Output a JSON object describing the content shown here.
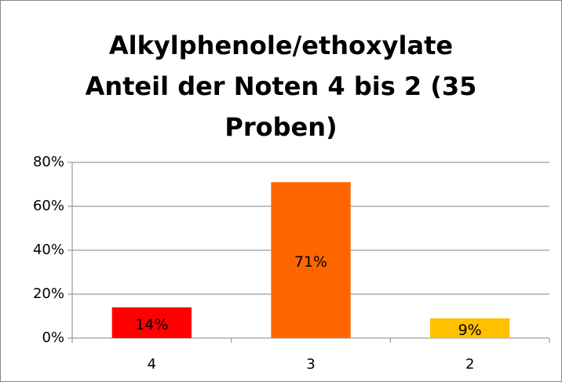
{
  "chart_data": {
    "type": "bar",
    "title": "Alkylphenole/ethoxylate Anteil der Noten 4 bis 2 (35 Proben)",
    "categories": [
      "4",
      "3",
      "2"
    ],
    "values": [
      14,
      71,
      9
    ],
    "value_labels": [
      "14%",
      "71%",
      "9%"
    ],
    "colors": [
      "#ff0000",
      "#ff6600",
      "#ffc000"
    ],
    "ylim": [
      0,
      80
    ],
    "yticks": [
      {
        "value": 0,
        "label": "0%"
      },
      {
        "value": 20,
        "label": "20%"
      },
      {
        "value": 40,
        "label": "40%"
      },
      {
        "value": 60,
        "label": "60%"
      },
      {
        "value": 80,
        "label": "80%"
      }
    ],
    "grid": true
  }
}
